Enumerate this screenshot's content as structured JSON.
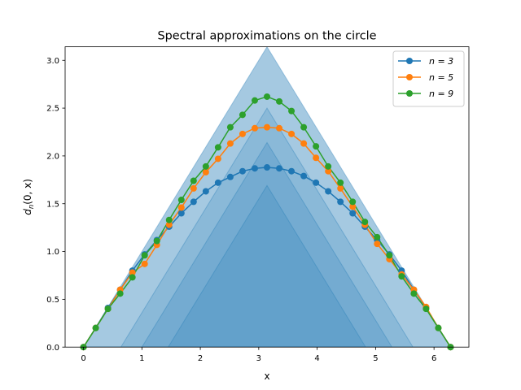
{
  "chart_data": {
    "type": "line",
    "title": "Spectral approximations on the circle",
    "xlabel": "x",
    "ylabel_main": "d",
    "ylabel_sub": "n",
    "ylabel_rest": "(0, x)",
    "xlim": [
      -0.314,
      6.597
    ],
    "ylim": [
      0,
      3.1416
    ],
    "xticks": [
      0,
      1,
      2,
      3,
      4,
      5,
      6
    ],
    "xtick_labels": [
      "0",
      "1",
      "2",
      "3",
      "4",
      "5",
      "6"
    ],
    "yticks": [
      0.0,
      0.5,
      1.0,
      1.5,
      2.0,
      2.5,
      3.0
    ],
    "ytick_labels": [
      "0.0",
      "0.5",
      "1.0",
      "1.5",
      "2.0",
      "2.5",
      "3.0"
    ],
    "grid": false,
    "legend_position": "top-right",
    "bands": [
      {
        "color": "#1f77b4",
        "opacity": 0.2,
        "x": [
          0,
          1.45,
          3.1416,
          4.83,
          6.2832
        ],
        "y": [
          0,
          0,
          1.69,
          0,
          0
        ]
      },
      {
        "color": "#1f77b4",
        "opacity": 0.2,
        "x": [
          0,
          1.0,
          3.1416,
          5.28,
          6.2832
        ],
        "y": [
          0,
          0,
          2.14,
          0,
          0
        ]
      },
      {
        "color": "#1f77b4",
        "opacity": 0.2,
        "x": [
          0,
          0.64,
          3.1416,
          5.64,
          6.2832
        ],
        "y": [
          0,
          0,
          2.5,
          0,
          0
        ]
      },
      {
        "color": "#1f77b4",
        "opacity": 0.4,
        "x": [
          0,
          3.1416,
          6.2832
        ],
        "y": [
          0,
          3.1416,
          0
        ]
      }
    ],
    "x": [
      0.0,
      0.2094,
      0.4189,
      0.6283,
      0.8378,
      1.0472,
      1.2566,
      1.4661,
      1.6755,
      1.885,
      2.0944,
      2.3038,
      2.5133,
      2.7227,
      2.9322,
      3.1416,
      3.351,
      3.5605,
      3.7699,
      3.9794,
      4.1888,
      4.3982,
      4.6077,
      4.8171,
      5.0265,
      5.236,
      5.4454,
      5.6549,
      5.8643,
      6.0737,
      6.2832
    ],
    "series": [
      {
        "name": "n = 3",
        "color": "#1f77b4",
        "values": [
          0.0,
          0.2,
          0.41,
          0.6,
          0.8,
          0.97,
          1.12,
          1.26,
          1.4,
          1.52,
          1.63,
          1.72,
          1.78,
          1.84,
          1.87,
          1.88,
          1.87,
          1.84,
          1.79,
          1.72,
          1.63,
          1.52,
          1.4,
          1.26,
          1.12,
          0.97,
          0.8,
          0.6,
          0.41,
          0.2,
          0.0
        ]
      },
      {
        "name": "n = 5",
        "color": "#ff7f0e",
        "values": [
          0.0,
          0.2,
          0.4,
          0.6,
          0.78,
          0.87,
          1.07,
          1.28,
          1.46,
          1.66,
          1.83,
          1.97,
          2.13,
          2.23,
          2.29,
          2.3,
          2.29,
          2.23,
          2.13,
          1.98,
          1.84,
          1.66,
          1.47,
          1.28,
          1.08,
          0.92,
          0.76,
          0.6,
          0.42,
          0.2,
          0.0
        ]
      },
      {
        "name": "n = 9",
        "color": "#2ca02c",
        "values": [
          0.0,
          0.2,
          0.4,
          0.56,
          0.73,
          0.96,
          1.11,
          1.33,
          1.54,
          1.74,
          1.89,
          2.09,
          2.3,
          2.43,
          2.58,
          2.62,
          2.57,
          2.47,
          2.3,
          2.1,
          1.89,
          1.72,
          1.52,
          1.31,
          1.15,
          0.96,
          0.74,
          0.56,
          0.4,
          0.2,
          0.0
        ]
      }
    ]
  }
}
